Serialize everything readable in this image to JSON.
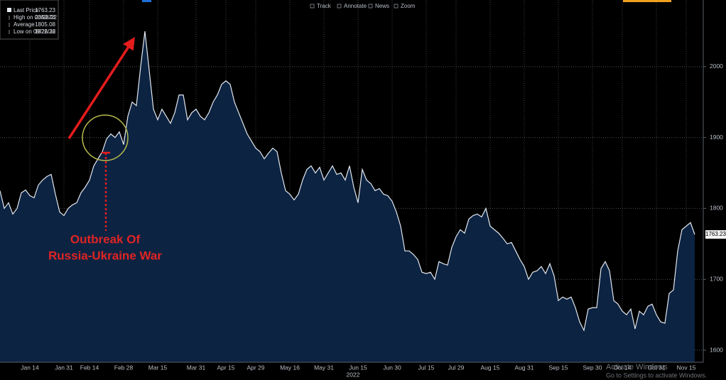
{
  "chart_data": {
    "type": "area",
    "toolbar": [
      "Track",
      "Annotate",
      "News",
      "Zoom"
    ],
    "stats": [
      {
        "label": "High on 03/08/22",
        "value": 2050.76
      },
      {
        "label": "Average",
        "value": 1805.08
      },
      {
        "label": "Low on 09/26/22",
        "value": 1622.36
      }
    ],
    "annotation": [
      "Outbreak Of",
      "Russia-Ukraine War"
    ],
    "x_sublabel": "2022",
    "watermark": [
      "Activate Windows",
      "Go to Settings to activate Windows."
    ],
    "categories": [
      null,
      null,
      null,
      null,
      null,
      null,
      null,
      "Jan 14",
      null,
      null,
      null,
      null,
      null,
      null,
      null,
      "Jan 31",
      null,
      null,
      null,
      null,
      null,
      "Feb 14",
      null,
      null,
      null,
      null,
      null,
      null,
      null,
      "Feb 28",
      null,
      null,
      null,
      null,
      null,
      null,
      null,
      "Mar 15",
      null,
      null,
      null,
      null,
      null,
      null,
      null,
      null,
      "Mar 31",
      null,
      null,
      null,
      null,
      null,
      null,
      "Apr 15",
      null,
      null,
      null,
      null,
      null,
      null,
      "Apr 29",
      null,
      null,
      null,
      null,
      null,
      null,
      null,
      "May 16",
      null,
      null,
      null,
      null,
      null,
      null,
      null,
      "May 31",
      null,
      null,
      null,
      null,
      null,
      null,
      null,
      "Jun 15",
      null,
      null,
      null,
      null,
      null,
      null,
      null,
      "Jun 30",
      null,
      null,
      null,
      null,
      null,
      null,
      null,
      "Jul 15",
      null,
      null,
      null,
      null,
      null,
      null,
      "Jul 29",
      null,
      null,
      null,
      null,
      null,
      null,
      null,
      "Aug 15",
      null,
      null,
      null,
      null,
      null,
      null,
      null,
      "Aug 31",
      null,
      null,
      null,
      null,
      null,
      null,
      null,
      "Sep 15",
      null,
      null,
      null,
      null,
      null,
      null,
      null,
      "Sep 30",
      null,
      null,
      null,
      null,
      null,
      null,
      "Oct 14",
      null,
      null,
      null,
      null,
      null,
      null,
      null,
      "Oct 31",
      null,
      null,
      null,
      null,
      null,
      null,
      "Nov 15",
      null,
      null
    ],
    "series": [
      {
        "name": "Last Price",
        "color": "#e3e8ef",
        "fill": "#0c2342",
        "values": [
          1825,
          1800,
          1808,
          1792,
          1800,
          1822,
          1826,
          1818,
          1815,
          1833,
          1840,
          1845,
          1848,
          1820,
          1795,
          1790,
          1800,
          1805,
          1808,
          1822,
          1830,
          1840,
          1860,
          1870,
          1880,
          1898,
          1905,
          1900,
          1908,
          1890,
          1930,
          1950,
          1945,
          2000,
          2050,
          1995,
          1940,
          1925,
          1940,
          1930,
          1920,
          1935,
          1960,
          1960,
          1925,
          1935,
          1940,
          1930,
          1925,
          1935,
          1950,
          1960,
          1975,
          1980,
          1975,
          1950,
          1935,
          1920,
          1905,
          1895,
          1885,
          1880,
          1870,
          1878,
          1885,
          1880,
          1850,
          1825,
          1820,
          1812,
          1820,
          1840,
          1855,
          1860,
          1850,
          1858,
          1840,
          1850,
          1860,
          1848,
          1850,
          1840,
          1860,
          1830,
          1808,
          1855,
          1840,
          1835,
          1825,
          1828,
          1820,
          1818,
          1810,
          1795,
          1775,
          1740,
          1740,
          1735,
          1728,
          1710,
          1708,
          1710,
          1700,
          1725,
          1722,
          1720,
          1745,
          1760,
          1770,
          1765,
          1785,
          1790,
          1792,
          1788,
          1800,
          1775,
          1770,
          1765,
          1758,
          1750,
          1752,
          1740,
          1728,
          1718,
          1700,
          1710,
          1712,
          1718,
          1708,
          1722,
          1705,
          1670,
          1675,
          1672,
          1675,
          1660,
          1640,
          1628,
          1658,
          1660,
          1660,
          1715,
          1725,
          1712,
          1670,
          1665,
          1655,
          1650,
          1658,
          1630,
          1655,
          1650,
          1662,
          1665,
          1650,
          1640,
          1638,
          1680,
          1685,
          1740,
          1770,
          1775,
          1780,
          1763.23
        ]
      }
    ],
    "ylim": [
      1583,
      2094
    ],
    "yticks": [
      1600,
      1700,
      1800,
      1900,
      2000
    ],
    "grid": true
  }
}
